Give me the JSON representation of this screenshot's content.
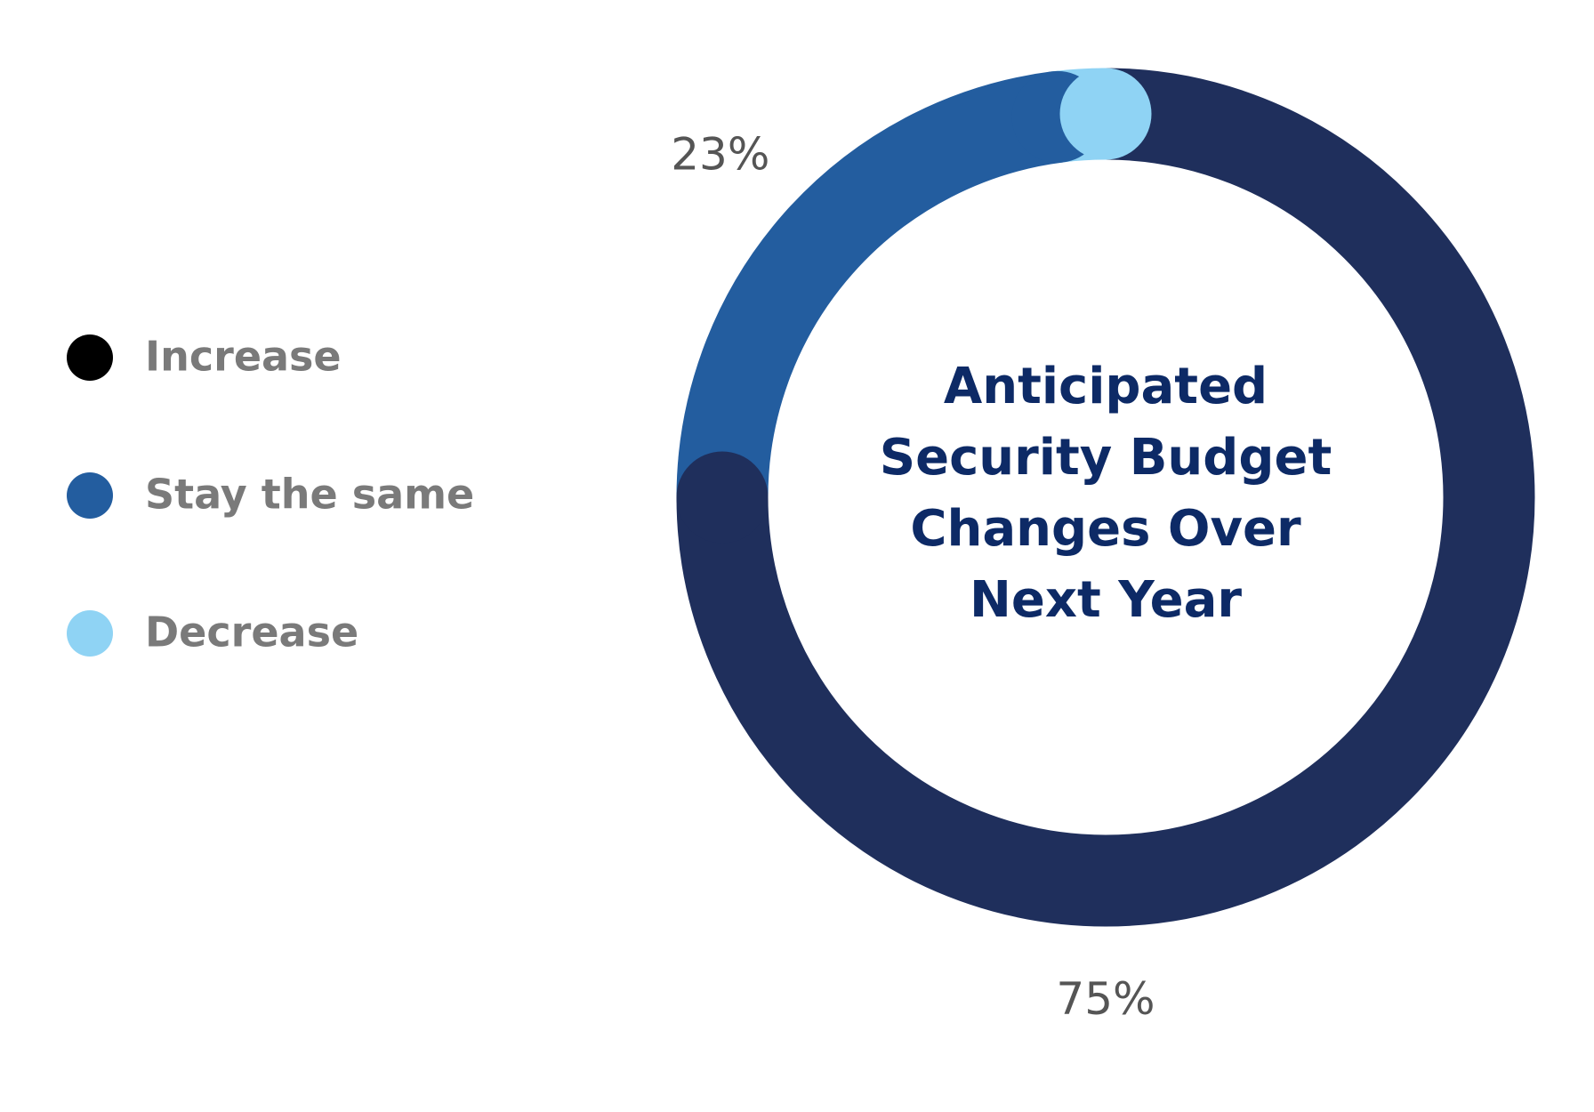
{
  "chart_data": {
    "type": "donut",
    "title": "Anticipated Security Budget Changes Over Next Year",
    "categories": [
      "Increase",
      "Stay the same",
      "Decrease"
    ],
    "values": [
      75,
      23,
      2
    ],
    "value_labels": [
      "75%",
      "23%",
      null
    ],
    "colors": [
      "#1f2f5c",
      "#235d9f",
      "#8fd3f4"
    ],
    "legend_colors": [
      "#000000",
      "#235d9f",
      "#8fd3f4"
    ],
    "legend": "left"
  }
}
